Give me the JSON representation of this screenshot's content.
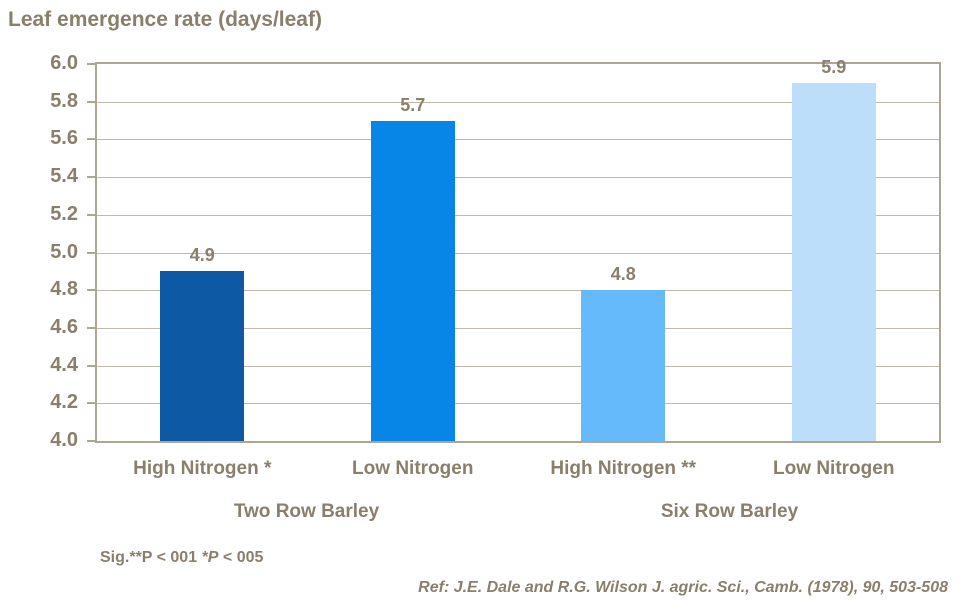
{
  "chart_data": {
    "type": "bar",
    "title": "Leaf emergence rate (days/leaf)",
    "categories": [
      "High Nitrogen *",
      "Low Nitrogen",
      "High Nitrogen **",
      "Low Nitrogen"
    ],
    "values": [
      4.9,
      5.7,
      4.8,
      5.9
    ],
    "value_labels": [
      "4.9",
      "5.7",
      "4.8",
      "5.9"
    ],
    "bar_colors": [
      "#0E59A4",
      "#0786E8",
      "#65BAFB",
      "#BDDEFB"
    ],
    "groups": [
      {
        "label": "Two Row Barley",
        "center_fraction": 0.25
      },
      {
        "label": "Six Row Barley",
        "center_fraction": 0.75
      }
    ],
    "xlabel": "",
    "ylabel": "",
    "ylim": [
      4.0,
      6.0
    ],
    "ytick_step": 0.2,
    "ytick_labels": [
      "4.0",
      "4.2",
      "4.4",
      "4.6",
      "4.8",
      "5.0",
      "5.2",
      "5.4",
      "5.6",
      "5.8",
      "6.0"
    ],
    "grid": true,
    "legend": null
  },
  "footnote": {
    "prefix": "Sig.**P < 001 ",
    "italic_part": "*P",
    "suffix": " < 005"
  },
  "reference": "Ref: J.E. Dale and R.G. Wilson J. agric. Sci., Camb. (1978), 90, 503-508",
  "colors": {
    "text": "#8A7F6B",
    "frame": "#AEA597",
    "grid": "#C1B9AC",
    "background": "#FFFFFF"
  }
}
